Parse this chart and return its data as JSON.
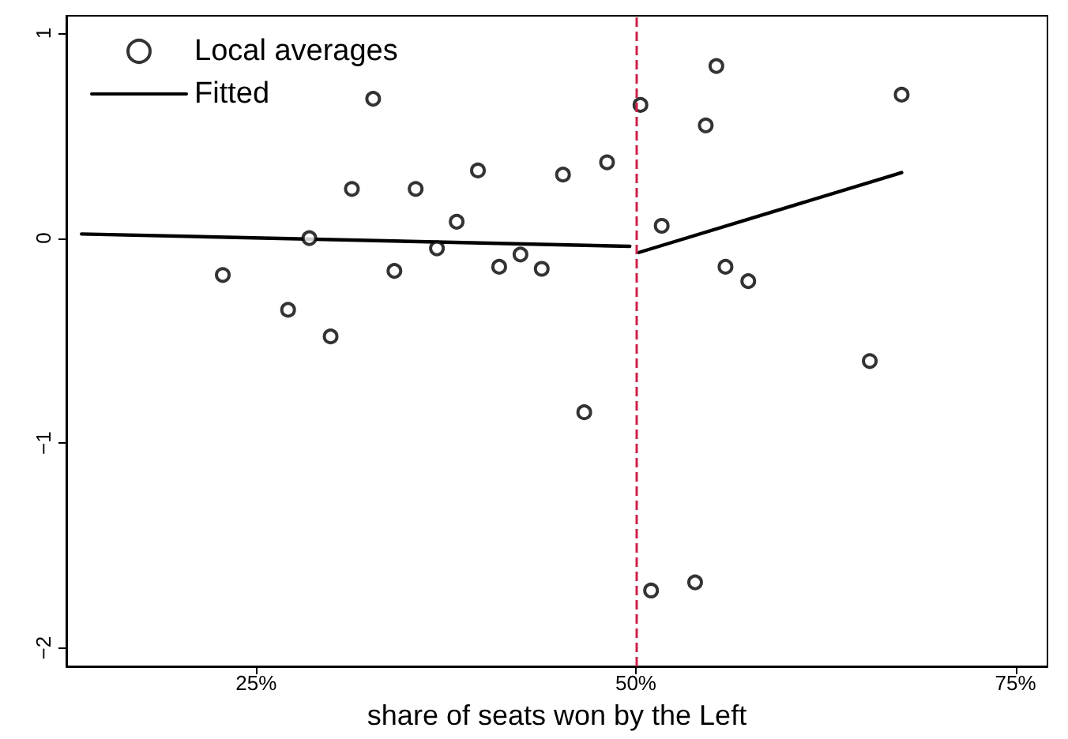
{
  "chart_data": {
    "type": "scatter",
    "xlabel": "share of seats won by the Left",
    "xlim": [
      12.5,
      77.1
    ],
    "ylim": [
      -2.09,
      1.085
    ],
    "xticks": [
      {
        "value": 25,
        "label": "25%"
      },
      {
        "value": 50,
        "label": "50%"
      },
      {
        "value": 75,
        "label": "75%"
      }
    ],
    "yticks": [
      {
        "value": -2,
        "label": "−2"
      },
      {
        "value": -1,
        "label": "−1"
      },
      0,
      1
    ],
    "grid": false,
    "legend": "top left",
    "marker": "circle",
    "series": [
      {
        "name": "Local averages",
        "type": "scatter",
        "color": "#000000",
        "x": [
          22.8,
          27.1,
          28.5,
          29.9,
          31.3,
          32.7,
          34.1,
          35.5,
          36.9,
          38.2,
          39.6,
          41.0,
          42.4,
          43.8,
          45.2,
          46.6,
          48.1,
          50.3,
          51.0,
          51.7,
          54.6,
          53.9,
          55.3,
          55.9,
          57.4,
          65.4,
          67.5
        ],
        "values": [
          -0.18,
          -0.35,
          0.0,
          -0.48,
          0.24,
          0.68,
          -0.16,
          0.24,
          -0.05,
          0.08,
          0.33,
          -0.14,
          -0.08,
          -0.15,
          0.31,
          -0.85,
          0.37,
          0.65,
          -1.72,
          0.06,
          0.55,
          -1.68,
          0.84,
          -0.14,
          -0.21,
          -0.6,
          0.7
        ]
      },
      {
        "name": "Fitted",
        "type": "line",
        "color": "#000000",
        "marker": "none",
        "line_style": "solid",
        "x": [
          13.5,
          49.6,
          49.9,
          50.2,
          67.5
        ],
        "values": [
          0.02,
          -0.04,
          null,
          -0.07,
          0.32
        ]
      }
    ],
    "ref_lines": [
      {
        "axis": "x",
        "value": 50,
        "color": "#d0204a",
        "line_style": "dashed"
      }
    ]
  }
}
